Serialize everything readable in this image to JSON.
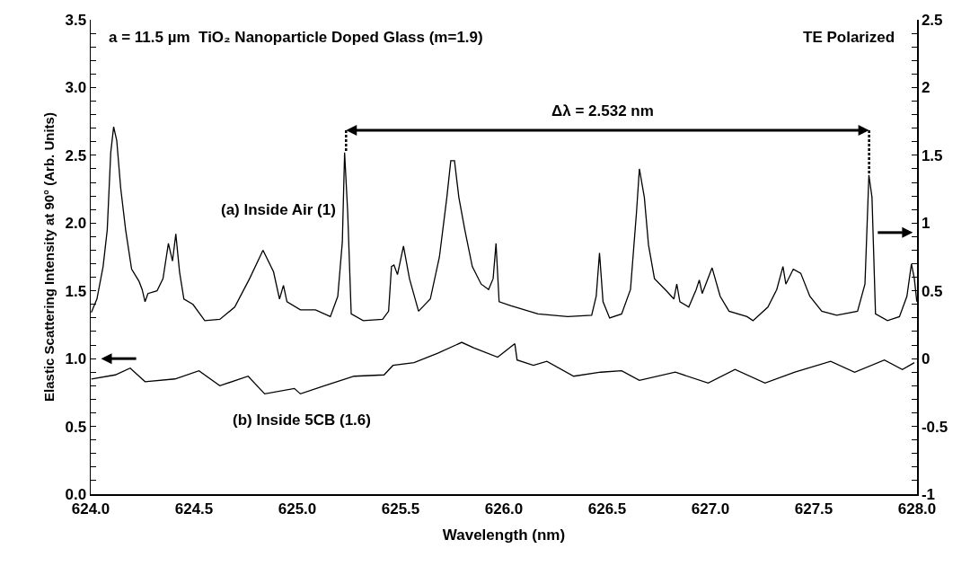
{
  "chart_data": {
    "type": "line",
    "title": "a = 11.5 µm  TiO₂ Nanoparticle Doped Glass (m=1.9)",
    "xlabel": "Wavelength (nm)",
    "ylabel": "Elastic Scattering Intensity at 90° (Arb. Units)",
    "annotations": [
      "TE Polarized",
      "Δλ = 2.532 nm"
    ],
    "xlim": [
      624,
      628
    ],
    "xticks": [
      {
        "value": 624,
        "label": "624.0"
      },
      624.5,
      {
        "value": 625,
        "label": "625.0"
      },
      625.5,
      {
        "value": 626,
        "label": "626.0"
      },
      626.5,
      {
        "value": 627,
        "label": "627.0"
      },
      627.5,
      {
        "value": 628,
        "label": "628.0"
      }
    ],
    "ylim": [
      0,
      3.5
    ],
    "yticks": [
      {
        "value": 0,
        "label": "0.0"
      },
      {
        "value": 0.1,
        "label": null
      },
      {
        "value": 0.2,
        "label": null
      },
      {
        "value": 0.3,
        "label": null
      },
      {
        "value": 0.4,
        "label": null
      },
      0.5,
      {
        "value": 0.6,
        "label": null
      },
      {
        "value": 0.7,
        "label": null
      },
      {
        "value": 0.8,
        "label": null
      },
      {
        "value": 0.9,
        "label": null
      },
      {
        "value": 1,
        "label": "1.0"
      },
      {
        "value": 1.1,
        "label": null
      },
      {
        "value": 1.2,
        "label": null
      },
      {
        "value": 1.3,
        "label": null
      },
      {
        "value": 1.4,
        "label": null
      },
      1.5,
      {
        "value": 1.6,
        "label": null
      },
      {
        "value": 1.7,
        "label": null
      },
      {
        "value": 1.8,
        "label": null
      },
      {
        "value": 1.9,
        "label": null
      },
      {
        "value": 2,
        "label": "2.0"
      },
      {
        "value": 2.1,
        "label": null
      },
      {
        "value": 2.2,
        "label": null
      },
      {
        "value": 2.3,
        "label": null
      },
      {
        "value": 2.4,
        "label": null
      },
      2.5,
      {
        "value": 2.6,
        "label": null
      },
      {
        "value": 2.7,
        "label": null
      },
      {
        "value": 2.8,
        "label": null
      },
      {
        "value": 2.9,
        "label": null
      },
      {
        "value": 3,
        "label": "3.0"
      },
      {
        "value": 3.1,
        "label": null
      },
      {
        "value": 3.2,
        "label": null
      },
      {
        "value": 3.3,
        "label": null
      },
      {
        "value": 3.4,
        "label": null
      },
      3.5
    ],
    "y2lim": [
      -1,
      2.5
    ],
    "y2ticks": [
      -1,
      {
        "value": -0.9,
        "label": null
      },
      {
        "value": -0.8,
        "label": null
      },
      {
        "value": -0.7,
        "label": null
      },
      {
        "value": -0.6,
        "label": null
      },
      -0.5,
      {
        "value": -0.4,
        "label": null
      },
      {
        "value": -0.3,
        "label": null
      },
      {
        "value": -0.2,
        "label": null
      },
      {
        "value": -0.1,
        "label": null
      },
      0,
      {
        "value": 0.1,
        "label": null
      },
      {
        "value": 0.2,
        "label": null
      },
      {
        "value": 0.3,
        "label": null
      },
      {
        "value": 0.4,
        "label": null
      },
      0.5,
      {
        "value": 0.6,
        "label": null
      },
      {
        "value": 0.7,
        "label": null
      },
      {
        "value": 0.8,
        "label": null
      },
      {
        "value": 0.9,
        "label": null
      },
      1,
      {
        "value": 1.1,
        "label": null
      },
      {
        "value": 1.2,
        "label": null
      },
      {
        "value": 1.3,
        "label": null
      },
      {
        "value": 1.4,
        "label": null
      },
      1.5,
      {
        "value": 1.6,
        "label": null
      },
      {
        "value": 1.7,
        "label": null
      },
      {
        "value": 1.8,
        "label": null
      },
      {
        "value": 1.9,
        "label": null
      },
      2,
      {
        "value": 2.1,
        "label": null
      },
      {
        "value": 2.2,
        "label": null
      },
      {
        "value": 2.3,
        "label": null
      },
      {
        "value": 2.4,
        "label": null
      },
      2.5
    ],
    "grid": false,
    "series": [
      {
        "name": "(a) Inside Air (1)",
        "color": "#000000",
        "axis": "y2",
        "x": [
          624.003,
          624.03,
          624.06,
          624.08,
          624.097,
          624.111,
          624.126,
          624.145,
          624.169,
          624.198,
          624.234,
          624.249,
          624.263,
          624.277,
          624.321,
          624.35,
          624.376,
          624.396,
          624.412,
          624.43,
          624.451,
          624.495,
          624.552,
          624.625,
          624.697,
          624.769,
          624.834,
          624.885,
          624.914,
          624.933,
          624.95,
          625.015,
          625.088,
          625.16,
          625.196,
          625.218,
          625.229,
          625.244,
          625.261,
          625.319,
          625.413,
          625.442,
          625.456,
          625.468,
          625.485,
          625.514,
          625.543,
          625.587,
          625.644,
          625.688,
          625.724,
          625.743,
          625.761,
          625.782,
          625.811,
          625.847,
          625.89,
          625.926,
          625.948,
          625.962,
          625.977,
          626.035,
          626.165,
          626.309,
          626.425,
          626.447,
          626.463,
          626.48,
          626.512,
          626.57,
          626.613,
          626.642,
          626.656,
          626.68,
          626.7,
          626.729,
          626.787,
          626.823,
          626.837,
          626.852,
          626.895,
          626.931,
          626.946,
          626.96,
          627.008,
          627.047,
          627.09,
          627.177,
          627.206,
          627.278,
          627.321,
          627.351,
          627.365,
          627.401,
          627.437,
          627.481,
          627.539,
          627.611,
          627.712,
          627.748,
          627.767,
          627.782,
          627.799,
          627.857,
          627.915,
          627.951,
          627.973,
          627.987,
          627.999
        ],
        "values": [
          0.34,
          0.44,
          0.68,
          0.95,
          1.52,
          1.71,
          1.61,
          1.26,
          0.95,
          0.66,
          0.57,
          0.51,
          0.42,
          0.48,
          0.5,
          0.59,
          0.85,
          0.72,
          0.92,
          0.64,
          0.44,
          0.4,
          0.28,
          0.29,
          0.38,
          0.59,
          0.8,
          0.64,
          0.44,
          0.54,
          0.42,
          0.36,
          0.36,
          0.31,
          0.46,
          0.86,
          1.52,
          1.08,
          0.33,
          0.28,
          0.29,
          0.35,
          0.68,
          0.69,
          0.62,
          0.83,
          0.59,
          0.35,
          0.44,
          0.75,
          1.19,
          1.46,
          1.46,
          1.19,
          0.95,
          0.68,
          0.55,
          0.51,
          0.59,
          0.85,
          0.42,
          0.39,
          0.33,
          0.31,
          0.32,
          0.46,
          0.78,
          0.42,
          0.3,
          0.33,
          0.51,
          1.08,
          1.4,
          1.19,
          0.84,
          0.59,
          0.5,
          0.44,
          0.55,
          0.42,
          0.38,
          0.51,
          0.58,
          0.48,
          0.67,
          0.46,
          0.35,
          0.31,
          0.28,
          0.38,
          0.51,
          0.68,
          0.55,
          0.66,
          0.63,
          0.46,
          0.35,
          0.32,
          0.35,
          0.55,
          1.355,
          1.19,
          0.33,
          0.28,
          0.31,
          0.46,
          0.7,
          0.59,
          0.42
        ]
      },
      {
        "name": "(b) Inside 5CB (1.6)",
        "color": "#000000",
        "x": [
          624.003,
          624.119,
          624.191,
          624.263,
          624.408,
          624.524,
          624.625,
          624.762,
          624.842,
          624.986,
          625.015,
          625.131,
          625.275,
          625.42,
          625.463,
          625.565,
          625.68,
          625.796,
          625.854,
          625.97,
          626.053,
          626.064,
          626.143,
          626.208,
          626.338,
          626.469,
          626.57,
          626.656,
          626.83,
          626.989,
          627.119,
          627.264,
          627.409,
          627.582,
          627.698,
          627.842,
          627.929,
          627.987
        ],
        "values": [
          0.85,
          0.88,
          0.93,
          0.83,
          0.85,
          0.91,
          0.8,
          0.87,
          0.74,
          0.78,
          0.74,
          0.8,
          0.87,
          0.88,
          0.95,
          0.97,
          1.04,
          1.12,
          1.08,
          1.01,
          1.11,
          0.99,
          0.95,
          0.98,
          0.87,
          0.9,
          0.91,
          0.84,
          0.9,
          0.82,
          0.92,
          0.82,
          0.9,
          0.98,
          0.9,
          0.99,
          0.92,
          0.97
        ]
      }
    ]
  }
}
